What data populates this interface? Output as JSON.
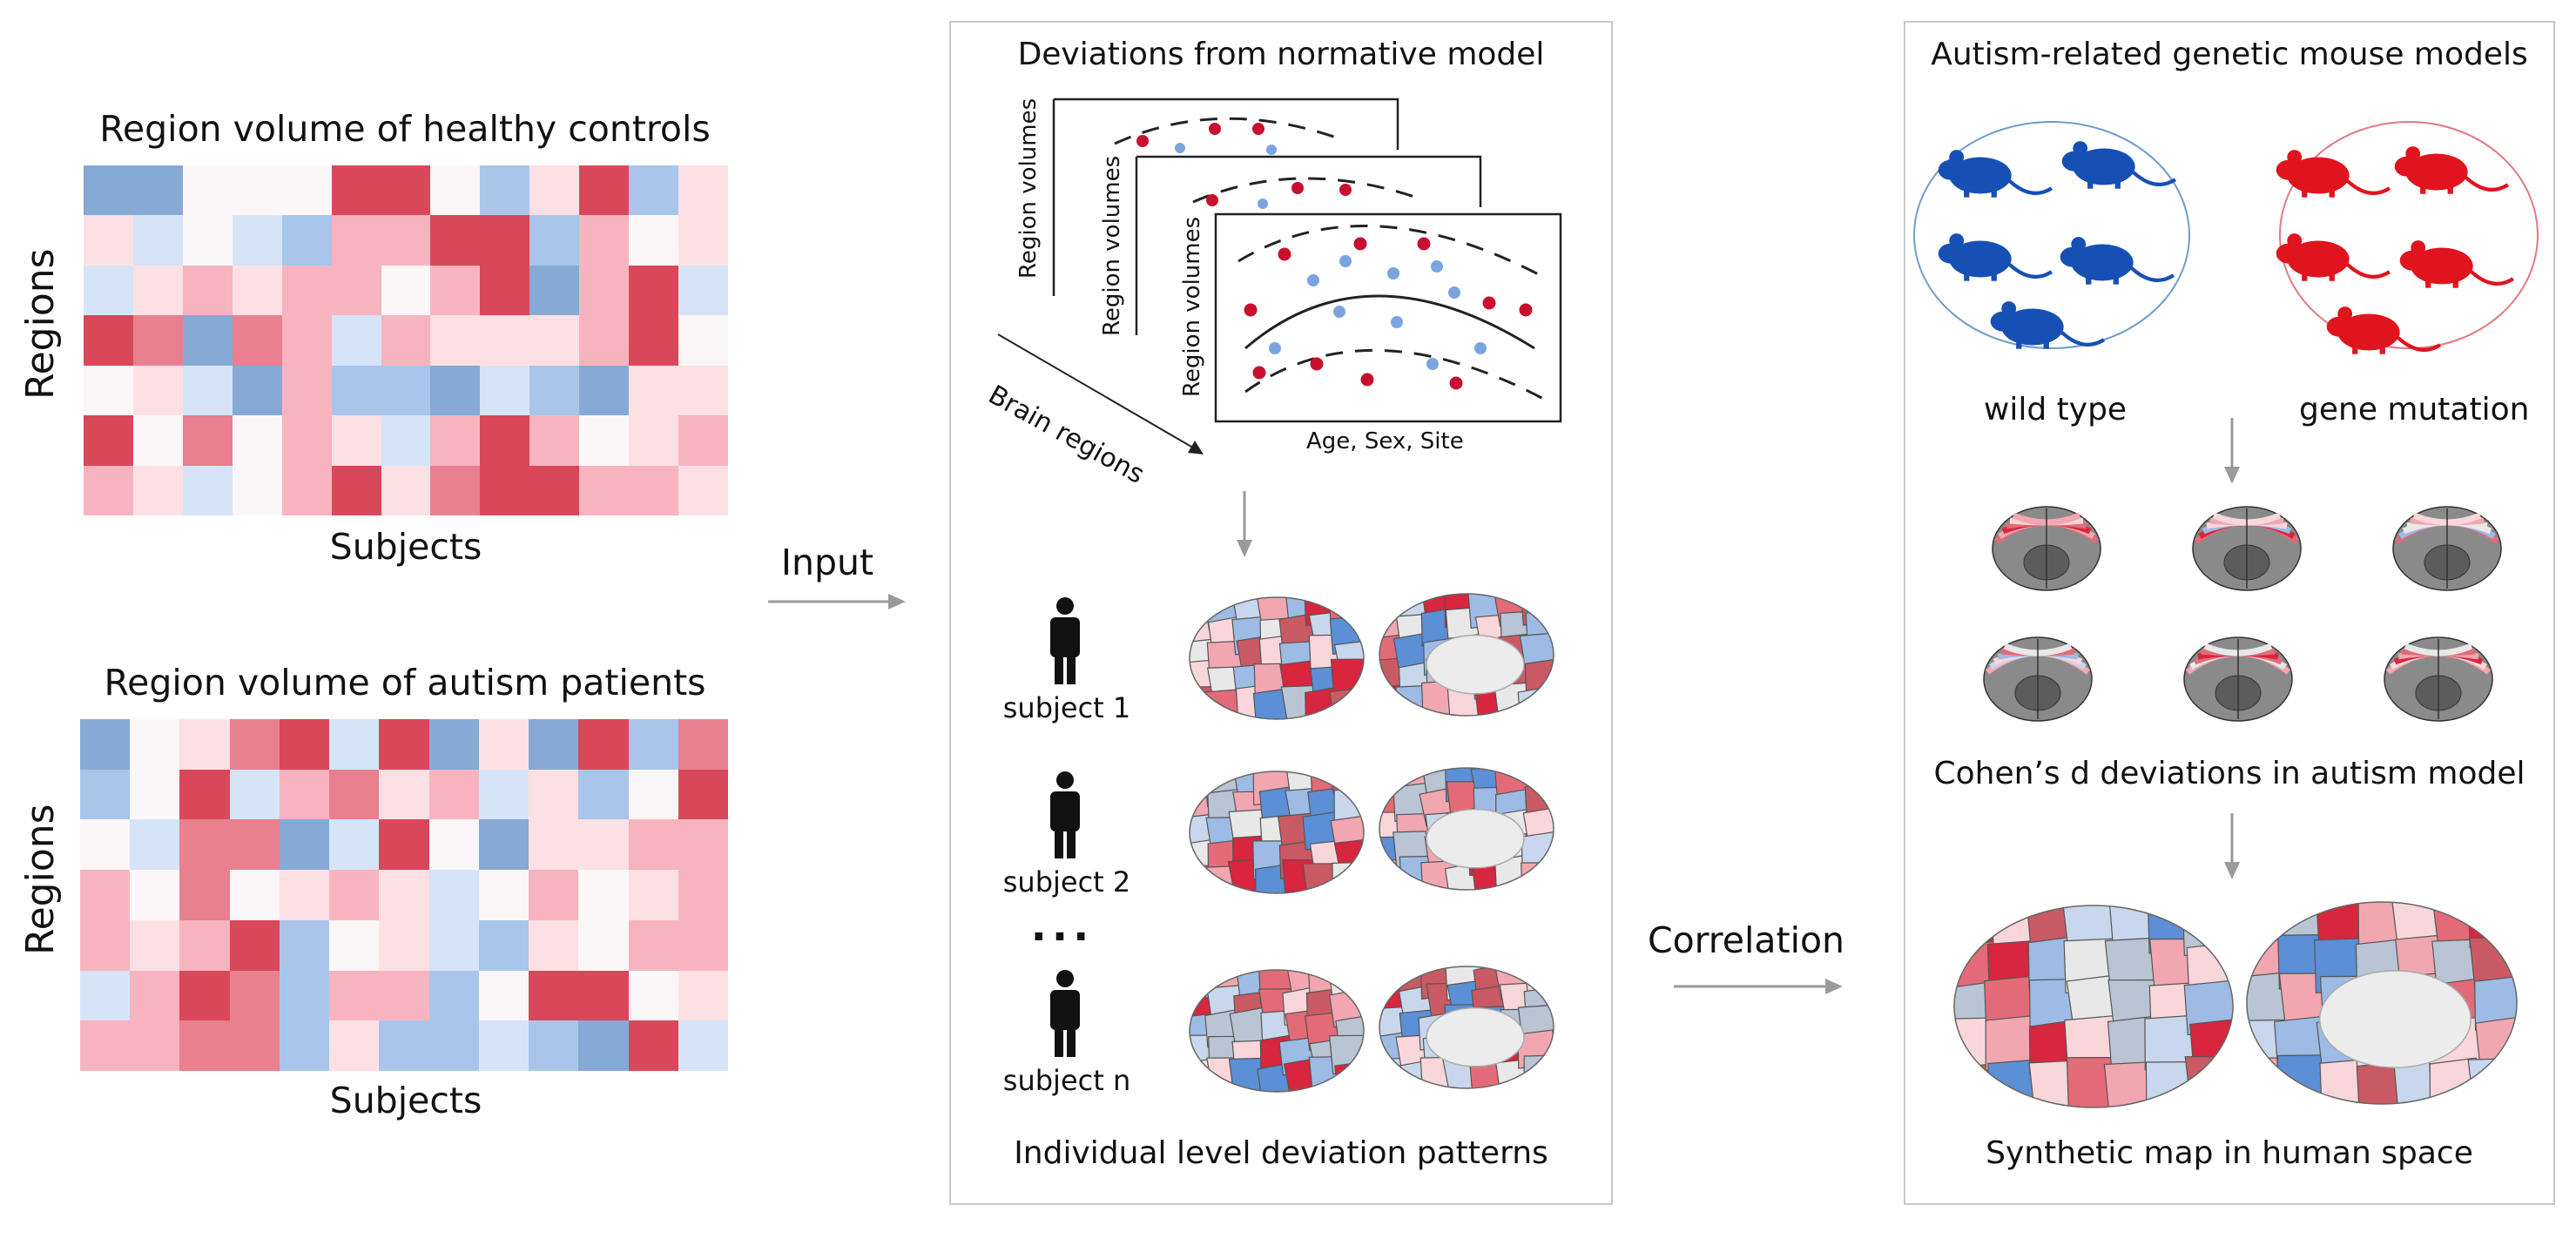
{
  "left": {
    "hc_title": "Region volume of healthy controls",
    "asd_title": "Region volume of autism patients",
    "ylabel": "Regions",
    "xlabel": "Subjects",
    "colors": {
      "dark_red": "#d9485a",
      "red": "#e8808f",
      "pink": "#f7b4bf",
      "light_pink": "#fde0e4",
      "white": "#fbf7f8",
      "light_blue": "#d6e4f7",
      "blue": "#a9c5ea",
      "dark_blue": "#86a9d6"
    },
    "hc_grid": [
      [
        "B",
        "B",
        "P",
        "P",
        "W",
        "R",
        "R",
        "W",
        "b",
        "L",
        "R",
        "b",
        "L"
      ],
      [
        "L",
        "l",
        "W",
        "l",
        "b",
        "p",
        "p",
        "R",
        "R",
        "b",
        "p",
        "W",
        "L"
      ],
      [
        "l",
        "L",
        "p",
        "L",
        "p",
        "p",
        "W",
        "p",
        "R",
        "B",
        "p",
        "R",
        "l"
      ],
      [
        "R",
        "r",
        "B",
        "r",
        "p",
        "l",
        "p",
        "L",
        "L",
        "L",
        "p",
        "R",
        "W"
      ],
      [
        "W",
        "L",
        "l",
        "B",
        "p",
        "b",
        "b",
        "B",
        "l",
        "b",
        "B",
        "L",
        "L"
      ],
      [
        "R",
        "W",
        "r",
        "W",
        "p",
        "L",
        "l",
        "p",
        "R",
        "p",
        "W",
        "L",
        "p"
      ],
      [
        "p",
        "L",
        "l",
        "W",
        "p",
        "R",
        "L",
        "r",
        "R",
        "R",
        "p",
        "p",
        "L"
      ]
    ],
    "asd_grid": [
      [
        "B",
        "W",
        "L",
        "r",
        "R",
        "l",
        "R",
        "B",
        "L",
        "B",
        "R",
        "b",
        "r"
      ],
      [
        "b",
        "W",
        "R",
        "l",
        "p",
        "r",
        "L",
        "p",
        "l",
        "L",
        "b",
        "W",
        "R"
      ],
      [
        "W",
        "l",
        "r",
        "r",
        "B",
        "l",
        "R",
        "W",
        "B",
        "L",
        "L",
        "p",
        "p"
      ],
      [
        "p",
        "W",
        "r",
        "W",
        "L",
        "p",
        "L",
        "l",
        "W",
        "p",
        "W",
        "L",
        "p"
      ],
      [
        "p",
        "L",
        "p",
        "R",
        "b",
        "W",
        "L",
        "l",
        "b",
        "L",
        "W",
        "p",
        "p"
      ],
      [
        "l",
        "p",
        "R",
        "r",
        "b",
        "p",
        "p",
        "b",
        "W",
        "R",
        "R",
        "W",
        "L"
      ],
      [
        "p",
        "p",
        "r",
        "r",
        "b",
        "L",
        "b",
        "b",
        "l",
        "b",
        "B",
        "R",
        "l"
      ]
    ]
  },
  "arrows": {
    "input": "Input",
    "correlation": "Correlation"
  },
  "middle": {
    "title": "Deviations from normative model",
    "axis_y": "Region volumes",
    "axis_x": "Age, Sex, Site",
    "brain_regions": "Brain regions",
    "subjects": [
      "subject 1",
      "subject 2",
      "subject n"
    ],
    "ellipsis": "...",
    "footer": "Individual level deviation patterns",
    "dot_red": "#c8102e",
    "dot_blue": "#7aa5e0"
  },
  "right": {
    "title": "Autism-related genetic mouse models",
    "wild_type": "wild type",
    "gene_mutation": "gene mutation",
    "cohen": "Cohen’s d deviations in autism model",
    "footer": "Synthetic map in human space",
    "mouse_blue": "#1750b5",
    "mouse_red": "#e0141e"
  }
}
